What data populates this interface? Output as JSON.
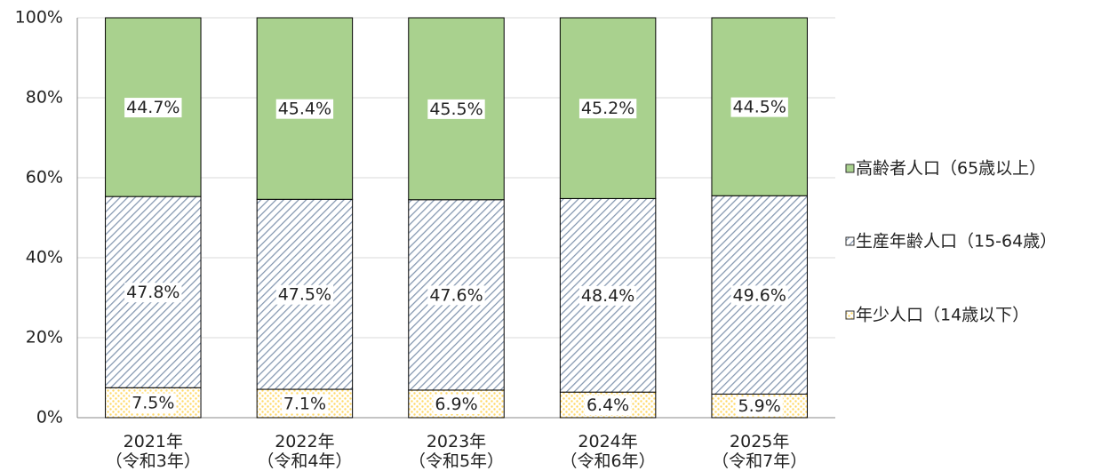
{
  "chart_data": {
    "type": "stacked_bar",
    "categories": [
      "2021年\n（令和3年）",
      "2022年\n（令和4年）",
      "2023年\n（令和5年）",
      "2024年\n（令和6年）",
      "2025年\n（令和7年）"
    ],
    "series": [
      {
        "name": "年少人口（14歳以下）",
        "color": "#ffd966",
        "pattern": "dots",
        "values": [
          7.5,
          7.1,
          6.9,
          6.4,
          5.9
        ],
        "value_labels": [
          "7.5%",
          "7.1%",
          "6.9%",
          "6.4%",
          "5.9%"
        ]
      },
      {
        "name": "生産年齢人口（15-64歳）",
        "color": "#8497b0",
        "pattern": "hatch",
        "values": [
          47.8,
          47.5,
          47.6,
          48.4,
          49.6
        ],
        "value_labels": [
          "47.8%",
          "47.5%",
          "47.6%",
          "48.4%",
          "49.6%"
        ]
      },
      {
        "name": "高齢者人口（65歳以上）",
        "color": "#a9d18e",
        "pattern": "solid",
        "values": [
          44.7,
          45.4,
          45.5,
          45.2,
          44.5
        ],
        "value_labels": [
          "44.7%",
          "45.4%",
          "45.5%",
          "45.2%",
          "44.5%"
        ]
      }
    ],
    "ylim": [
      0,
      100
    ],
    "yticks": [
      {
        "value": 0,
        "label": "0%"
      },
      {
        "value": 20,
        "label": "20%"
      },
      {
        "value": 40,
        "label": "40%"
      },
      {
        "value": 60,
        "label": "60%"
      },
      {
        "value": 80,
        "label": "80%"
      },
      {
        "value": 100,
        "label": "100%"
      }
    ],
    "grid": true,
    "legend": "right"
  }
}
